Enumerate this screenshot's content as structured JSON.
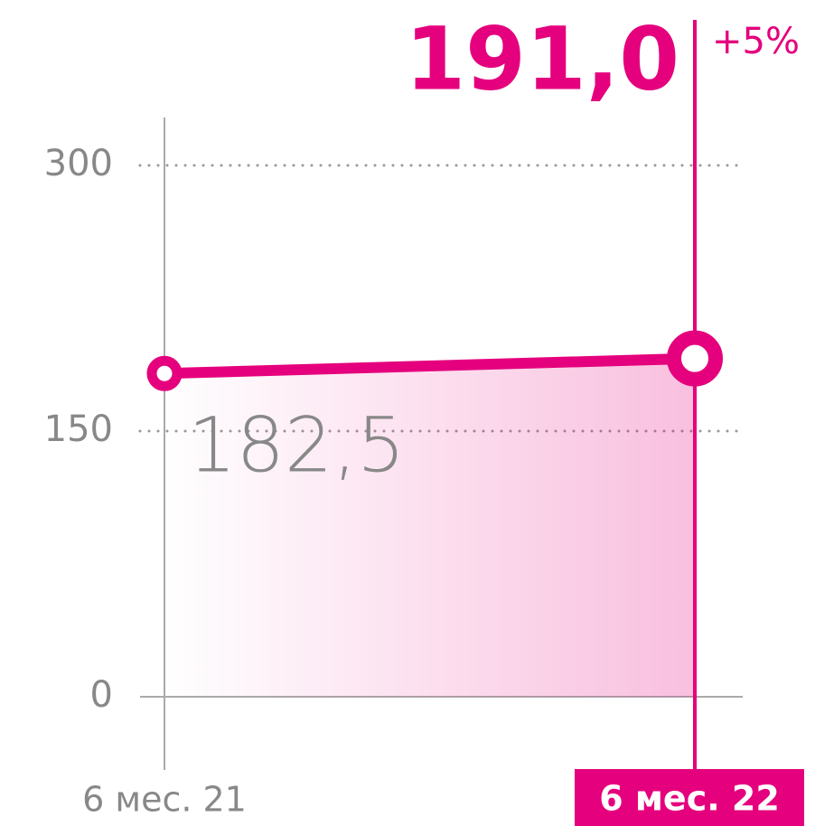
{
  "chart_data": {
    "type": "line",
    "categories": [
      "6 мес. 21",
      "6 мес. 22"
    ],
    "values": [
      182.5,
      191.0
    ],
    "value_labels": [
      "182,5",
      "191,0"
    ],
    "annotations": [
      "+5%"
    ],
    "color": "#e5007d",
    "ylim": [
      0,
      300
    ],
    "yticks": [
      0,
      150,
      300
    ],
    "grid": true
  }
}
